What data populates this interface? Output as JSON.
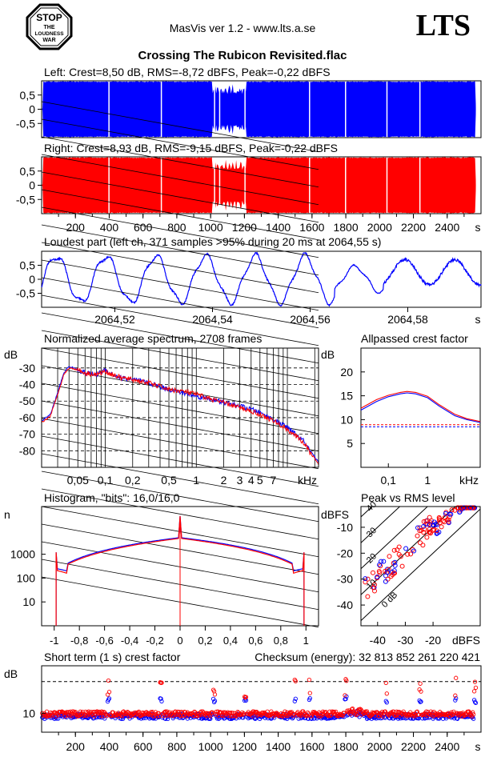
{
  "header": {
    "app_title": "MasVis ver 1.2 - www.lts.a.se",
    "brand": "LTS",
    "stop_badge": {
      "line1": "STOP",
      "line2": "THE",
      "line3": "LOUDNESS",
      "line4": "WAR"
    },
    "file_title": "Crossing The Rubicon Revisited.flac"
  },
  "colors": {
    "left": "#0000ff",
    "right": "#ff0000",
    "background": "#ffffff",
    "axis": "#000000"
  },
  "chart_data": [
    {
      "id": "left",
      "type": "area",
      "title": "Left: Crest=8,50 dB, RMS=-8,72 dBFS, Peak=-0,22 dBFS",
      "yticks": [
        "0,5",
        "0",
        "-0,5"
      ],
      "ylim": [
        -1,
        1
      ],
      "xlim": [
        0,
        2600
      ],
      "duration_s": 2570,
      "silent_gaps_s": [
        [
          395,
          400
        ],
        [
          705,
          712
        ],
        [
          1020,
          1026
        ],
        [
          1050,
          1055
        ],
        [
          1200,
          1205
        ],
        [
          1582,
          1588
        ],
        [
          1795,
          1800
        ],
        [
          2040,
          2045
        ],
        [
          2235,
          2240
        ]
      ]
    },
    {
      "id": "right",
      "type": "area",
      "title": "Right: Crest=8,93 dB, RMS=-9,15 dBFS, Peak=-0,22 dBFS",
      "yticks": [
        "0,5",
        "0",
        "-0,5"
      ],
      "ylim": [
        -1,
        1
      ],
      "xlim": [
        0,
        2600
      ],
      "xticks": [
        "200",
        "400",
        "600",
        "800",
        "1000",
        "1200",
        "1400",
        "1600",
        "1800",
        "2000",
        "2200",
        "2400"
      ],
      "xtick_values": [
        200,
        400,
        600,
        800,
        1000,
        1200,
        1400,
        1600,
        1800,
        2000,
        2200,
        2400
      ],
      "xunit": "s"
    },
    {
      "id": "loudest",
      "type": "line",
      "title": "Loudest part (left  ch, 371 samples >95% during 20 ms at 2064,55 s)",
      "yticks": [
        "0,5",
        "0",
        "-0,5"
      ],
      "ylim": [
        -1,
        1
      ],
      "xlim": [
        2064.505,
        2064.595
      ],
      "xticks": [
        "2064,52",
        "2064,54",
        "2064,56",
        "2064,58"
      ],
      "xtick_values": [
        2064.52,
        2064.54,
        2064.56,
        2064.58
      ],
      "xunit": "s"
    },
    {
      "id": "spectrum",
      "type": "line",
      "title": "Normalized average spectrum, 2708 frames",
      "ylabel": "dB",
      "yticks": [
        "-30",
        "-40",
        "-50",
        "-60",
        "-70",
        "-80"
      ],
      "ytick_values": [
        -30,
        -40,
        -50,
        -60,
        -70,
        -80
      ],
      "ylim": [
        -90,
        -18
      ],
      "xlim_khz": [
        0.02,
        22
      ],
      "xscale": "log",
      "xticks": [
        "0,05",
        "0,1",
        "0,2",
        "0,5",
        "1",
        "2",
        "3",
        "4",
        "5",
        "7",
        "kHz"
      ],
      "xtick_values": [
        0.05,
        0.1,
        0.2,
        0.5,
        1,
        2,
        3,
        4,
        5,
        7
      ],
      "series": [
        {
          "channel": "left",
          "khz": [
            0.02,
            0.025,
            0.03,
            0.035,
            0.04,
            0.05,
            0.06,
            0.08,
            0.1,
            0.12,
            0.15,
            0.2,
            0.3,
            0.5,
            0.7,
            1,
            1.5,
            2,
            3,
            4,
            5,
            7,
            10,
            15,
            22
          ],
          "db": [
            -62,
            -58,
            -45,
            -33,
            -29,
            -31,
            -33,
            -34,
            -31,
            -34,
            -36,
            -37,
            -39,
            -43,
            -45,
            -47,
            -49,
            -51,
            -53,
            -55,
            -57,
            -61,
            -66,
            -74,
            -88
          ]
        },
        {
          "channel": "right",
          "khz": [
            0.02,
            0.025,
            0.03,
            0.035,
            0.04,
            0.05,
            0.06,
            0.08,
            0.1,
            0.12,
            0.15,
            0.2,
            0.3,
            0.5,
            0.7,
            1,
            1.5,
            2,
            3,
            4,
            5,
            7,
            10,
            15,
            22
          ],
          "db": [
            -63,
            -59,
            -46,
            -34,
            -30,
            -31,
            -33,
            -34,
            -32,
            -34,
            -36,
            -37,
            -39,
            -43,
            -44,
            -46,
            -49,
            -51,
            -54,
            -56,
            -58,
            -62,
            -67,
            -75,
            -89
          ]
        }
      ]
    },
    {
      "id": "allpass_crest",
      "type": "line",
      "title": "Allpassed crest factor",
      "ylabel": "dB",
      "yticks": [
        "20",
        "15",
        "10",
        "5"
      ],
      "ytick_values": [
        20,
        15,
        10,
        5
      ],
      "ylim": [
        0,
        25
      ],
      "xlim_khz": [
        0.02,
        22
      ],
      "xscale": "log",
      "xticks": [
        "0,1",
        "1",
        "kHz"
      ],
      "xtick_values": [
        0.1,
        1
      ],
      "reference_levels": [
        8.5,
        8.93
      ],
      "series": [
        {
          "channel": "left",
          "khz": [
            0.02,
            0.05,
            0.1,
            0.2,
            0.3,
            0.5,
            1,
            2,
            5,
            10,
            22
          ],
          "db": [
            12.0,
            13.8,
            14.8,
            15.4,
            15.6,
            15.4,
            14.6,
            12.8,
            10.8,
            10.0,
            9.4
          ]
        },
        {
          "channel": "right",
          "khz": [
            0.02,
            0.05,
            0.1,
            0.2,
            0.3,
            0.5,
            1,
            2,
            5,
            10,
            22
          ],
          "db": [
            12.4,
            14.2,
            15.1,
            15.7,
            15.9,
            15.7,
            14.9,
            13.1,
            11.1,
            10.2,
            9.6
          ]
        }
      ]
    },
    {
      "id": "histogram",
      "type": "line",
      "title": "Histogram, \"bits\": 16,0/16,0",
      "ylabel": "n",
      "yscale": "log",
      "yticks": [
        "1000",
        "100",
        "10"
      ],
      "ytick_values": [
        1000,
        100,
        10
      ],
      "ylim": [
        1,
        100000
      ],
      "xlim": [
        -1.1,
        1.1
      ],
      "xticks": [
        "-1",
        "-0,8",
        "-0,6",
        "-0,4",
        "-0,2",
        "0",
        "0,2",
        "0,4",
        "0,6",
        "0,8",
        "1"
      ],
      "xtick_values": [
        -1,
        -0.8,
        -0.6,
        -0.4,
        -0.2,
        0,
        0.2,
        0.4,
        0.6,
        0.8,
        1
      ]
    },
    {
      "id": "peak_vs_rms",
      "type": "scatter",
      "title": "Peak vs RMS level",
      "ylabel": "dBFS",
      "xlabel": "dBFS",
      "yticks": [
        "-10",
        "-20",
        "-30",
        "-40"
      ],
      "ytick_values": [
        -10,
        -20,
        -30,
        -40
      ],
      "xticks": [
        "-40",
        "-30",
        "-20"
      ],
      "xtick_values": [
        -40,
        -30,
        -20
      ],
      "xlim": [
        -46,
        -3
      ],
      "ylim": [
        -48,
        -2
      ],
      "diagonal_labels": [
        "40",
        "30",
        "20",
        "10",
        "0 dB"
      ],
      "diagonal_values": [
        40,
        30,
        20,
        10,
        0
      ]
    },
    {
      "id": "short_term_crest",
      "type": "scatter",
      "title": "Short term (1 s) crest factor",
      "checksum_label": "Checksum (energy):  32 813 852 261 220 421",
      "ylabel": "dB",
      "yticks": [
        "10"
      ],
      "ytick_values": [
        10
      ],
      "ylim": [
        4,
        25
      ],
      "reference_line_db": 20,
      "xlim": [
        0,
        2600
      ],
      "xticks": [
        "200",
        "400",
        "600",
        "800",
        "1000",
        "1200",
        "1400",
        "1600",
        "1800",
        "2000",
        "2200",
        "2400"
      ],
      "xtick_values": [
        200,
        400,
        600,
        800,
        1000,
        1200,
        1400,
        1600,
        1800,
        2000,
        2200,
        2400
      ],
      "xunit": "s"
    }
  ]
}
